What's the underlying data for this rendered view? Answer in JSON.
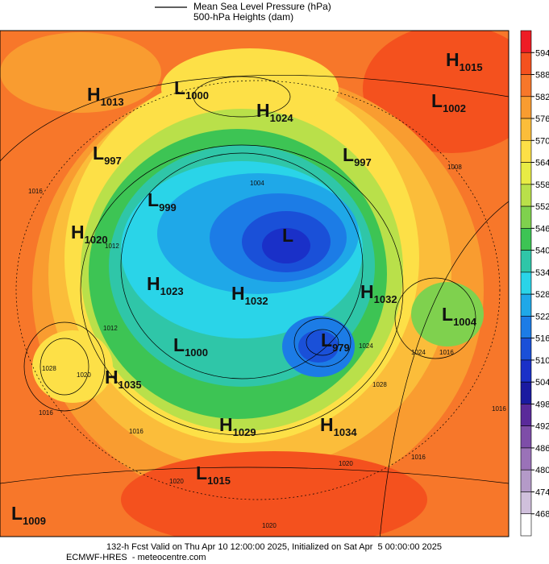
{
  "header": {
    "line_label": "Mean Sea Level Pressure (hPa)",
    "fill_label": "500-hPa Heights (dam)"
  },
  "pressure_centers": [
    {
      "letter": "H",
      "value": "1015"
    },
    {
      "letter": "L",
      "value": "1002"
    },
    {
      "letter": "H",
      "value": "1013"
    },
    {
      "letter": "L",
      "value": "1000"
    },
    {
      "letter": "H",
      "value": "1024"
    },
    {
      "letter": "L",
      "value": "997"
    },
    {
      "letter": "L",
      "value": "997"
    },
    {
      "letter": "L",
      "value": "999"
    },
    {
      "letter": "H",
      "value": "1020"
    },
    {
      "letter": "L"
    },
    {
      "letter": "H",
      "value": "1023"
    },
    {
      "letter": "H",
      "value": "1032"
    },
    {
      "letter": "H",
      "value": "1032"
    },
    {
      "letter": "L",
      "value": "1004"
    },
    {
      "letter": "L",
      "value": "1000"
    },
    {
      "letter": "L",
      "value": "979"
    },
    {
      "letter": "H",
      "value": "1035"
    },
    {
      "letter": "H",
      "value": "1029"
    },
    {
      "letter": "H",
      "value": "1034"
    },
    {
      "letter": "L",
      "value": "1015"
    },
    {
      "letter": "L",
      "value": "1009"
    }
  ],
  "contour_labels": [
    "1016",
    "1012",
    "1012",
    "1016",
    "1028",
    "1020",
    "1016",
    "1024",
    "1020",
    "1016",
    "1024",
    "1016",
    "1028",
    "1020",
    "1020",
    "1016",
    "1004",
    "1008"
  ],
  "colorbar": {
    "ticks": [
      "594",
      "588",
      "582",
      "576",
      "570",
      "564",
      "558",
      "552",
      "546",
      "540",
      "534",
      "528",
      "522",
      "516",
      "510",
      "504",
      "498",
      "492",
      "486",
      "480",
      "474",
      "468"
    ],
    "colors": [
      "#ee1c25",
      "#f4511e",
      "#f7772a",
      "#f99c30",
      "#fbbd3a",
      "#fde047",
      "#e8ec45",
      "#b9e04a",
      "#7fd14e",
      "#3dc454",
      "#2fc6a8",
      "#2ad4e8",
      "#1fa8e8",
      "#1c7ce6",
      "#1a50d8",
      "#1a30c8",
      "#1a1aa0",
      "#5a2a9a",
      "#7e4ea8",
      "#9a72b8",
      "#b49ac8",
      "#d0c0dc",
      "#ffffff"
    ]
  },
  "footer": {
    "line1": "132-h Fcst Valid on Thu Apr 10 12:00:00 2025, Initialized on Sat Apr  5 00:00:00 2025",
    "line2": "ECMWF-HRES  - meteocentre.com"
  }
}
